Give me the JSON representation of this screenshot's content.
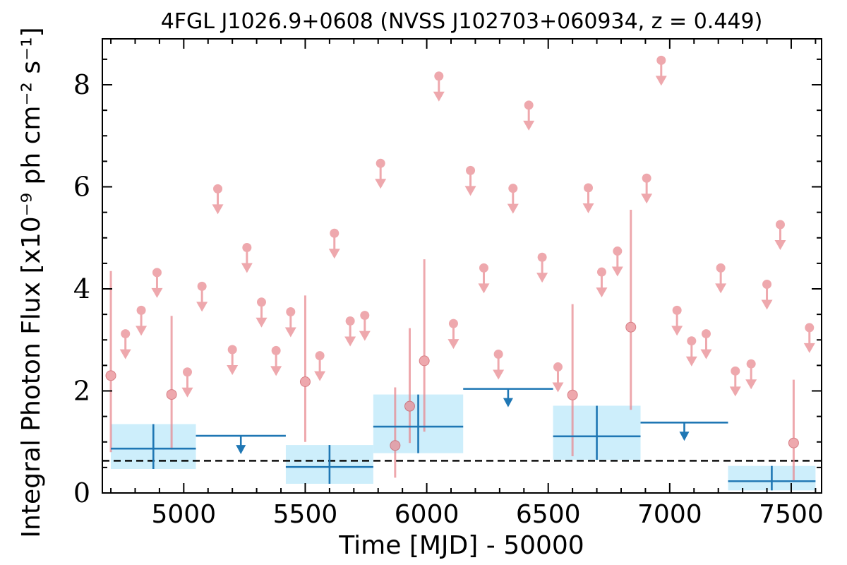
{
  "chart_data": {
    "type": "scatter",
    "title": "4FGL J1026.9+0608 (NVSS J102703+060934, z = 0.449)",
    "xlabel": "Time [MJD] - 50000",
    "ylabel": "Integral Photon Flux [x10⁻⁹ ph cm⁻² s⁻¹]",
    "xlim": [
      4665,
      7625
    ],
    "ylim": [
      0,
      8.9
    ],
    "x_ticks": [
      5000,
      5500,
      6000,
      6500,
      7000,
      7500
    ],
    "y_ticks": [
      0,
      2,
      4,
      6,
      8
    ],
    "grid": false,
    "mean_flux": 0.63,
    "colors": {
      "short_bins": "#e8878e",
      "long_bins": "#1f77b4",
      "long_bins_band": "#cdeefb",
      "mean_line": "#000000"
    },
    "detections_short": [
      {
        "x": 4700,
        "y": 2.3,
        "lo": 0.8,
        "hi": 4.35
      },
      {
        "x": 4950,
        "y": 1.93,
        "lo": 0.85,
        "hi": 3.47
      },
      {
        "x": 5500,
        "y": 2.18,
        "lo": 1.0,
        "hi": 3.87
      },
      {
        "x": 5870,
        "y": 0.93,
        "lo": 0.3,
        "hi": 2.07
      },
      {
        "x": 5930,
        "y": 1.7,
        "lo": 0.98,
        "hi": 3.23
      },
      {
        "x": 5990,
        "y": 2.59,
        "lo": 1.2,
        "hi": 4.58
      },
      {
        "x": 6600,
        "y": 1.92,
        "lo": 0.72,
        "hi": 3.7
      },
      {
        "x": 6840,
        "y": 3.25,
        "lo": 1.63,
        "hi": 5.55
      },
      {
        "x": 7510,
        "y": 0.98,
        "lo": 0.25,
        "hi": 2.22
      }
    ],
    "upper_limits_short": [
      {
        "x": 4760,
        "y": 3.12
      },
      {
        "x": 4825,
        "y": 3.58
      },
      {
        "x": 4890,
        "y": 4.32
      },
      {
        "x": 5015,
        "y": 2.37
      },
      {
        "x": 5075,
        "y": 4.05
      },
      {
        "x": 5140,
        "y": 5.96
      },
      {
        "x": 5200,
        "y": 2.81
      },
      {
        "x": 5260,
        "y": 4.81
      },
      {
        "x": 5320,
        "y": 3.74
      },
      {
        "x": 5380,
        "y": 2.79
      },
      {
        "x": 5440,
        "y": 3.55
      },
      {
        "x": 5560,
        "y": 2.69
      },
      {
        "x": 5620,
        "y": 5.09
      },
      {
        "x": 5685,
        "y": 3.37
      },
      {
        "x": 5745,
        "y": 3.48
      },
      {
        "x": 5810,
        "y": 6.46
      },
      {
        "x": 6050,
        "y": 8.17
      },
      {
        "x": 6110,
        "y": 3.32
      },
      {
        "x": 6180,
        "y": 6.32
      },
      {
        "x": 6235,
        "y": 4.41
      },
      {
        "x": 6295,
        "y": 2.72
      },
      {
        "x": 6355,
        "y": 5.97
      },
      {
        "x": 6420,
        "y": 7.6
      },
      {
        "x": 6475,
        "y": 4.62
      },
      {
        "x": 6540,
        "y": 2.47
      },
      {
        "x": 6665,
        "y": 5.98
      },
      {
        "x": 6720,
        "y": 4.33
      },
      {
        "x": 6785,
        "y": 4.74
      },
      {
        "x": 6905,
        "y": 6.17
      },
      {
        "x": 6965,
        "y": 8.48
      },
      {
        "x": 7030,
        "y": 3.58
      },
      {
        "x": 7090,
        "y": 2.98
      },
      {
        "x": 7150,
        "y": 3.12
      },
      {
        "x": 7210,
        "y": 4.41
      },
      {
        "x": 7270,
        "y": 2.39
      },
      {
        "x": 7335,
        "y": 2.53
      },
      {
        "x": 7400,
        "y": 4.09
      },
      {
        "x": 7455,
        "y": 5.26
      },
      {
        "x": 7575,
        "y": 3.24
      }
    ],
    "detections_long": [
      {
        "x0": 4700,
        "x1": 5050,
        "xc": 4875,
        "y": 0.87,
        "lo": 0.47,
        "hi": 1.35
      },
      {
        "x0": 5420,
        "x1": 5780,
        "xc": 5600,
        "y": 0.51,
        "lo": 0.18,
        "hi": 0.94
      },
      {
        "x0": 5780,
        "x1": 6150,
        "xc": 5965,
        "y": 1.3,
        "lo": 0.78,
        "hi": 1.93
      },
      {
        "x0": 6520,
        "x1": 6880,
        "xc": 6700,
        "y": 1.11,
        "lo": 0.65,
        "hi": 1.71
      },
      {
        "x0": 7240,
        "x1": 7600,
        "xc": 7420,
        "y": 0.23,
        "lo": 0.05,
        "hi": 0.53
      }
    ],
    "upper_limits_long": [
      {
        "x0": 5050,
        "x1": 5420,
        "xc": 5235,
        "y": 1.12
      },
      {
        "x0": 6150,
        "x1": 6520,
        "xc": 6335,
        "y": 2.04
      },
      {
        "x0": 6880,
        "x1": 7240,
        "xc": 7060,
        "y": 1.38
      }
    ]
  }
}
